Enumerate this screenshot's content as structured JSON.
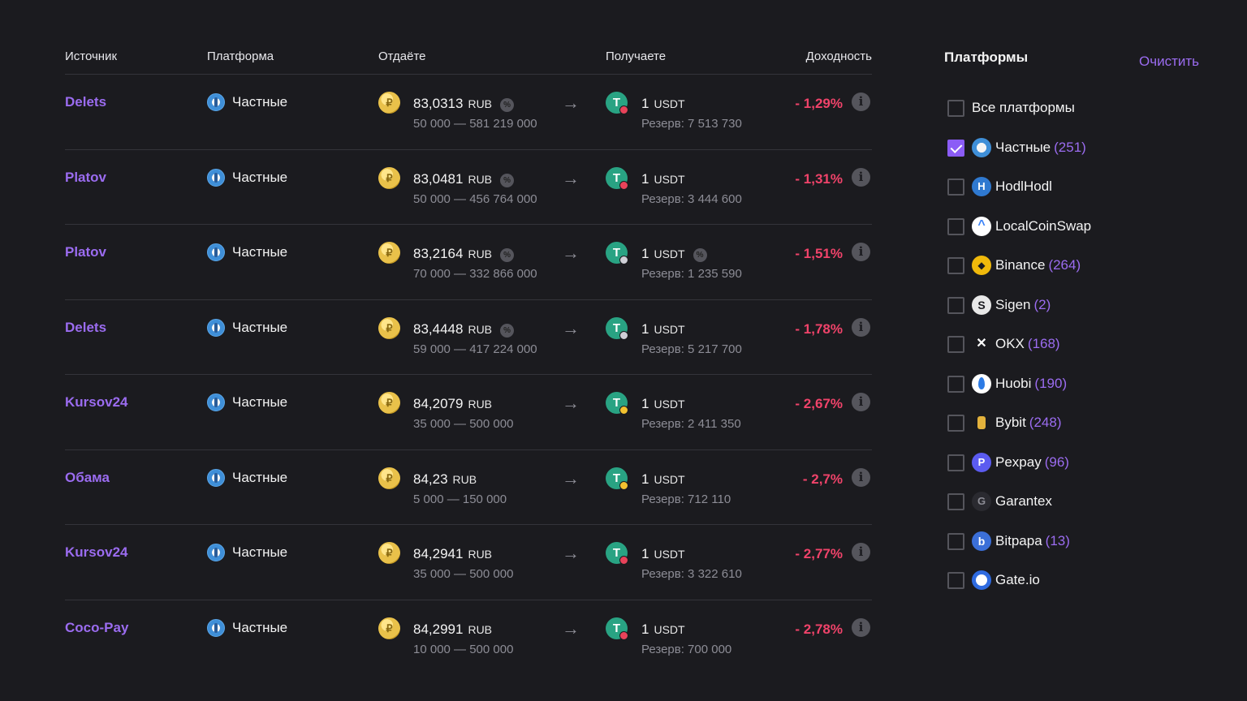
{
  "table": {
    "headers": {
      "source": "Источник",
      "platform": "Платформа",
      "give": "Отдаёте",
      "receive": "Получаете",
      "yield": "Доходность"
    },
    "rows": [
      {
        "source": "Delets",
        "platform": "Частные",
        "rate": "83,0313",
        "give_currency": "RUB",
        "limits": "50 000 — 581 219 000",
        "amount": "1",
        "get_currency": "USDT",
        "reserve": "Резерв: 7 513 730",
        "yield": "- 1,29%",
        "mark_color": "#e8435a"
      },
      {
        "source": "Platov",
        "platform": "Частные",
        "rate": "83,0481",
        "give_currency": "RUB",
        "limits": "50 000 — 456 764 000",
        "amount": "1",
        "get_currency": "USDT",
        "reserve": "Резерв: 3 444 600",
        "yield": "- 1,31%",
        "mark_color": "#e8435a"
      },
      {
        "source": "Platov",
        "platform": "Частные",
        "rate": "83,2164",
        "give_currency": "RUB",
        "limits": "70 000 — 332 866 000",
        "amount": "1",
        "get_currency": "USDT",
        "reserve": "Резерв: 1 235 590",
        "yield": "- 1,51%",
        "mark_color": "#cfcfd6"
      },
      {
        "source": "Delets",
        "platform": "Частные",
        "rate": "83,4448",
        "give_currency": "RUB",
        "limits": "59 000 — 417 224 000",
        "amount": "1",
        "get_currency": "USDT",
        "reserve": "Резерв: 5 217 700",
        "yield": "- 1,78%",
        "mark_color": "#cfcfd6"
      },
      {
        "source": "Kursov24",
        "platform": "Частные",
        "rate": "84,2079",
        "give_currency": "RUB",
        "limits": "35 000 — 500 000",
        "amount": "1",
        "get_currency": "USDT",
        "reserve": "Резерв: 2 411 350",
        "yield": "- 2,67%",
        "mark_color": "#f2c230"
      },
      {
        "source": "Обама",
        "platform": "Частные",
        "rate": "84,23",
        "give_currency": "RUB",
        "limits": "5 000 — 150 000",
        "amount": "1",
        "get_currency": "USDT",
        "reserve": "Резерв: 712 110",
        "yield": "- 2,7%",
        "mark_color": "#f2c230"
      },
      {
        "source": "Kursov24",
        "platform": "Частные",
        "rate": "84,2941",
        "give_currency": "RUB",
        "limits": "35 000 — 500 000",
        "amount": "1",
        "get_currency": "USDT",
        "reserve": "Резерв: 3 322 610",
        "yield": "- 2,77%",
        "mark_color": "#e8435a"
      },
      {
        "source": "Coco-Pay",
        "platform": "Частные",
        "rate": "84,2991",
        "give_currency": "RUB",
        "limits": "10 000 — 500 000",
        "amount": "1",
        "get_currency": "USDT",
        "reserve": "Резерв: 700 000",
        "yield": "- 2,78%",
        "mark_color": "#e8435a"
      }
    ]
  },
  "sidebar": {
    "title": "Платформы",
    "clear_label": "Очистить",
    "items": [
      {
        "label": "Все платформы",
        "count": "",
        "icon": "",
        "checked": false
      },
      {
        "label": "Частные",
        "count": "(251)",
        "icon": "private-icon",
        "checked": true
      },
      {
        "label": "HodlHodl",
        "count": "",
        "icon": "hodlhodl-icon",
        "checked": false
      },
      {
        "label": "LocalCoinSwap",
        "count": "",
        "icon": "localcoinswap-icon",
        "checked": false
      },
      {
        "label": "Binance",
        "count": "(264)",
        "icon": "binance-icon",
        "checked": false
      },
      {
        "label": "Sigen",
        "count": "(2)",
        "icon": "sigen-icon",
        "checked": false
      },
      {
        "label": "OKX",
        "count": "(168)",
        "icon": "okx-icon",
        "checked": false
      },
      {
        "label": "Huobi",
        "count": "(190)",
        "icon": "huobi-icon",
        "checked": false
      },
      {
        "label": "Bybit",
        "count": "(248)",
        "icon": "bybit-icon",
        "checked": false
      },
      {
        "label": "Pexpay",
        "count": "(96)",
        "icon": "pexpay-icon",
        "checked": false
      },
      {
        "label": "Garantex",
        "count": "",
        "icon": "garantex-icon",
        "checked": false
      },
      {
        "label": "Bitpapa",
        "count": "(13)",
        "icon": "bitpapa-icon",
        "checked": false
      },
      {
        "label": "Gate.io",
        "count": "",
        "icon": "gateio-icon",
        "checked": false
      }
    ]
  },
  "colors": {
    "accent": "#9b6cf0",
    "negative": "#f0436a",
    "background": "#1b1b1f"
  }
}
